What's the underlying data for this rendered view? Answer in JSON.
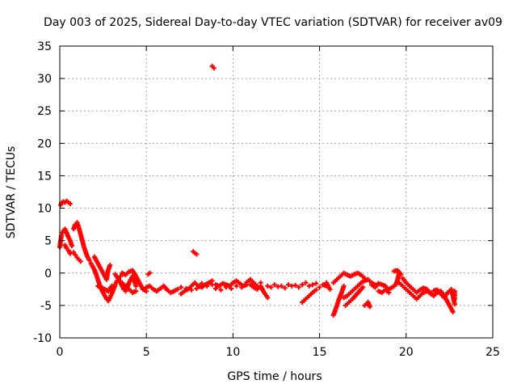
{
  "chart_data": {
    "type": "scatter",
    "title": "Day 003 of 2025, Sidereal Day-to-day VTEC variation (SDTVAR) for receiver av09",
    "xlabel": "GPS time / hours",
    "ylabel": "SDTVAR / TECUs",
    "xlim": [
      0,
      25
    ],
    "ylim": [
      -10,
      35
    ],
    "xticks": [
      0,
      5,
      10,
      15,
      20,
      25
    ],
    "yticks": [
      -10,
      -5,
      0,
      5,
      10,
      15,
      20,
      25,
      30,
      35
    ],
    "grid": true,
    "marker_color": "#ff0000",
    "series": [
      {
        "name": "SDTVAR",
        "points": [
          [
            0.0,
            4.0
          ],
          [
            0.05,
            5.0
          ],
          [
            0.1,
            5.8
          ],
          [
            0.15,
            6.2
          ],
          [
            0.2,
            6.5
          ],
          [
            0.3,
            6.8
          ],
          [
            0.4,
            6.2
          ],
          [
            0.5,
            5.5
          ],
          [
            0.6,
            5.0
          ],
          [
            0.7,
            4.2
          ],
          [
            0.8,
            6.8
          ],
          [
            0.9,
            7.5
          ],
          [
            1.0,
            7.8
          ],
          [
            1.1,
            7.0
          ],
          [
            1.2,
            6.0
          ],
          [
            1.3,
            5.0
          ],
          [
            1.4,
            4.0
          ],
          [
            1.5,
            3.2
          ],
          [
            1.6,
            2.5
          ],
          [
            1.7,
            2.0
          ],
          [
            0.8,
            3.2
          ],
          [
            0.9,
            2.8
          ],
          [
            1.0,
            2.4
          ],
          [
            1.1,
            2.1
          ],
          [
            1.2,
            1.8
          ],
          [
            0.05,
            10.5
          ],
          [
            0.1,
            10.8
          ],
          [
            0.2,
            11.0
          ],
          [
            0.3,
            10.9
          ],
          [
            0.4,
            11.1
          ],
          [
            0.5,
            10.9
          ],
          [
            0.6,
            10.7
          ],
          [
            0.3,
            4.3
          ],
          [
            0.4,
            3.8
          ],
          [
            0.5,
            3.5
          ],
          [
            0.6,
            3.0
          ],
          [
            1.8,
            1.5
          ],
          [
            1.9,
            1.0
          ],
          [
            2.0,
            0.5
          ],
          [
            2.1,
            -0.2
          ],
          [
            2.2,
            -1.0
          ],
          [
            2.3,
            -1.8
          ],
          [
            2.4,
            -2.5
          ],
          [
            2.5,
            -3.0
          ],
          [
            2.6,
            -3.5
          ],
          [
            2.7,
            -4.0
          ],
          [
            2.8,
            -4.3
          ],
          [
            2.9,
            -3.8
          ],
          [
            3.0,
            -3.2
          ],
          [
            3.1,
            -2.5
          ],
          [
            3.2,
            -1.8
          ],
          [
            3.3,
            -1.2
          ],
          [
            3.4,
            -0.8
          ],
          [
            3.5,
            -0.5
          ],
          [
            2.0,
            2.5
          ],
          [
            2.1,
            2.0
          ],
          [
            2.2,
            1.5
          ],
          [
            2.3,
            1.0
          ],
          [
            2.4,
            0.5
          ],
          [
            2.5,
            0.0
          ],
          [
            2.6,
            -0.5
          ],
          [
            2.7,
            -1.0
          ],
          [
            2.8,
            0.5
          ],
          [
            2.9,
            1.2
          ],
          [
            2.2,
            -2.0
          ],
          [
            2.4,
            -2.2
          ],
          [
            2.6,
            -2.5
          ],
          [
            2.8,
            -2.8
          ],
          [
            3.0,
            -2.0
          ],
          [
            3.5,
            -1.5
          ],
          [
            3.6,
            -2.0
          ],
          [
            3.7,
            -2.5
          ],
          [
            3.8,
            -2.8
          ],
          [
            3.9,
            -2.2
          ],
          [
            4.0,
            -1.5
          ],
          [
            4.1,
            -1.0
          ],
          [
            4.2,
            -0.5
          ],
          [
            4.3,
            -1.2
          ],
          [
            4.4,
            -2.0
          ],
          [
            3.6,
            0.0
          ],
          [
            3.8,
            -0.3
          ],
          [
            4.0,
            0.2
          ],
          [
            4.2,
            0.4
          ],
          [
            4.4,
            -0.5
          ],
          [
            4.6,
            -1.5
          ],
          [
            4.8,
            -2.5
          ],
          [
            5.0,
            -2.8
          ],
          [
            3.2,
            -0.2
          ],
          [
            3.4,
            -1.0
          ],
          [
            3.6,
            -1.5
          ],
          [
            3.8,
            -2.0
          ],
          [
            4.0,
            -2.5
          ],
          [
            4.2,
            -3.0
          ],
          [
            4.4,
            -2.8
          ],
          [
            5.0,
            -2.2
          ],
          [
            5.2,
            -2.0
          ],
          [
            5.4,
            -2.5
          ],
          [
            5.6,
            -2.8
          ],
          [
            5.8,
            -2.4
          ],
          [
            6.0,
            -2.0
          ],
          [
            6.2,
            -2.6
          ],
          [
            6.4,
            -3.0
          ],
          [
            6.6,
            -2.8
          ],
          [
            6.8,
            -2.5
          ],
          [
            5.1,
            -0.2
          ],
          [
            5.2,
            0.0
          ],
          [
            7.0,
            -3.2
          ],
          [
            7.2,
            -2.8
          ],
          [
            7.4,
            -2.5
          ],
          [
            7.6,
            -2.0
          ],
          [
            7.8,
            -1.5
          ],
          [
            8.0,
            -2.0
          ],
          [
            8.2,
            -2.2
          ],
          [
            8.4,
            -1.8
          ],
          [
            8.6,
            -1.5
          ],
          [
            8.8,
            -1.2
          ],
          [
            7.0,
            -2.2
          ],
          [
            7.3,
            -2.4
          ],
          [
            7.6,
            -2.6
          ],
          [
            7.9,
            -2.4
          ],
          [
            8.2,
            -1.6
          ],
          [
            8.5,
            -2.0
          ],
          [
            8.8,
            -1.8
          ],
          [
            7.7,
            3.3
          ],
          [
            7.8,
            3.1
          ],
          [
            7.9,
            2.9
          ],
          [
            8.8,
            31.9
          ],
          [
            8.9,
            31.6
          ],
          [
            9.0,
            -1.8
          ],
          [
            9.2,
            -2.0
          ],
          [
            9.4,
            -1.6
          ],
          [
            9.6,
            -1.8
          ],
          [
            9.8,
            -2.0
          ],
          [
            10.0,
            -1.5
          ],
          [
            10.2,
            -1.2
          ],
          [
            10.4,
            -1.6
          ],
          [
            10.6,
            -2.0
          ],
          [
            10.8,
            -1.8
          ],
          [
            9.0,
            -2.4
          ],
          [
            9.3,
            -2.6
          ],
          [
            9.6,
            -2.2
          ],
          [
            9.9,
            -2.4
          ],
          [
            10.2,
            -2.0
          ],
          [
            10.5,
            -2.2
          ],
          [
            10.8,
            -1.4
          ],
          [
            11.0,
            -1.0
          ],
          [
            11.2,
            -1.5
          ],
          [
            11.4,
            -2.0
          ],
          [
            11.0,
            -1.8
          ],
          [
            11.2,
            -2.2
          ],
          [
            11.4,
            -2.5
          ],
          [
            11.6,
            -2.0
          ],
          [
            11.8,
            -3.0
          ],
          [
            12.0,
            -3.8
          ],
          [
            11.6,
            -1.5
          ],
          [
            12.0,
            -2.0
          ],
          [
            12.4,
            -1.8
          ],
          [
            12.8,
            -2.0
          ],
          [
            13.2,
            -1.8
          ],
          [
            13.6,
            -1.9
          ],
          [
            14.0,
            -1.8
          ],
          [
            14.4,
            -2.0
          ],
          [
            14.8,
            -1.6
          ],
          [
            15.2,
            -1.8
          ],
          [
            15.4,
            -2.0
          ],
          [
            12.2,
            -2.2
          ],
          [
            12.6,
            -2.1
          ],
          [
            13.0,
            -2.3
          ],
          [
            13.4,
            -2.0
          ],
          [
            13.8,
            -2.2
          ],
          [
            14.2,
            -1.5
          ],
          [
            14.6,
            -1.8
          ],
          [
            15.0,
            -2.2
          ],
          [
            14.0,
            -4.5
          ],
          [
            14.2,
            -4.0
          ],
          [
            14.4,
            -3.5
          ],
          [
            14.6,
            -3.0
          ],
          [
            14.8,
            -2.6
          ],
          [
            15.4,
            -1.5
          ],
          [
            15.5,
            -2.0
          ],
          [
            15.6,
            -2.5
          ],
          [
            15.8,
            -6.5
          ],
          [
            15.9,
            -5.8
          ],
          [
            16.0,
            -5.0
          ],
          [
            16.1,
            -4.2
          ],
          [
            16.2,
            -3.5
          ],
          [
            16.3,
            -2.8
          ],
          [
            16.4,
            -2.0
          ],
          [
            15.8,
            -1.5
          ],
          [
            16.0,
            -1.0
          ],
          [
            16.2,
            -0.5
          ],
          [
            16.4,
            0.0
          ],
          [
            16.6,
            -0.3
          ],
          [
            16.8,
            -0.5
          ],
          [
            17.0,
            -0.2
          ],
          [
            17.2,
            0.0
          ],
          [
            17.4,
            -0.3
          ],
          [
            17.6,
            -0.8
          ],
          [
            16.4,
            -3.8
          ],
          [
            16.6,
            -3.5
          ],
          [
            16.8,
            -3.0
          ],
          [
            17.0,
            -2.5
          ],
          [
            17.2,
            -2.0
          ],
          [
            17.4,
            -1.5
          ],
          [
            17.6,
            -1.2
          ],
          [
            17.8,
            -1.0
          ],
          [
            18.0,
            -1.5
          ],
          [
            18.2,
            -1.8
          ],
          [
            16.5,
            -5.0
          ],
          [
            16.7,
            -4.5
          ],
          [
            16.9,
            -4.0
          ],
          [
            17.1,
            -3.4
          ],
          [
            17.3,
            -2.8
          ],
          [
            17.5,
            -2.2
          ],
          [
            17.6,
            -5.0
          ],
          [
            17.8,
            -4.5
          ],
          [
            17.9,
            -5.2
          ],
          [
            18.0,
            -1.8
          ],
          [
            18.2,
            -2.2
          ],
          [
            18.4,
            -1.6
          ],
          [
            18.6,
            -1.8
          ],
          [
            18.8,
            -2.0
          ],
          [
            19.0,
            -2.5
          ],
          [
            19.2,
            -2.2
          ],
          [
            19.4,
            -1.8
          ],
          [
            19.5,
            -1.0
          ],
          [
            19.6,
            0.0
          ],
          [
            18.4,
            -2.8
          ],
          [
            18.6,
            -3.0
          ],
          [
            18.8,
            -2.6
          ],
          [
            19.0,
            -3.0
          ],
          [
            19.3,
            0.3
          ],
          [
            19.5,
            0.4
          ],
          [
            19.7,
            -0.2
          ],
          [
            19.6,
            -1.5
          ],
          [
            19.8,
            -2.0
          ],
          [
            20.0,
            -2.5
          ],
          [
            20.2,
            -3.0
          ],
          [
            20.4,
            -3.5
          ],
          [
            20.6,
            -4.0
          ],
          [
            20.8,
            -3.5
          ],
          [
            21.0,
            -3.0
          ],
          [
            21.2,
            -2.8
          ],
          [
            21.4,
            -3.0
          ],
          [
            19.8,
            -0.8
          ],
          [
            20.0,
            -1.5
          ],
          [
            20.2,
            -2.0
          ],
          [
            20.4,
            -2.5
          ],
          [
            20.6,
            -3.0
          ],
          [
            20.8,
            -2.6
          ],
          [
            21.0,
            -2.3
          ],
          [
            21.2,
            -2.5
          ],
          [
            21.4,
            -3.2
          ],
          [
            21.6,
            -3.5
          ],
          [
            21.8,
            -3.0
          ],
          [
            22.0,
            -2.8
          ],
          [
            22.2,
            -3.5
          ],
          [
            22.4,
            -4.5
          ],
          [
            22.6,
            -5.5
          ],
          [
            22.7,
            -6.0
          ],
          [
            22.8,
            -4.0
          ],
          [
            22.8,
            -2.8
          ],
          [
            21.6,
            -2.7
          ],
          [
            21.8,
            -2.6
          ],
          [
            22.0,
            -3.2
          ],
          [
            22.2,
            -3.8
          ],
          [
            22.4,
            -3.0
          ],
          [
            22.6,
            -2.5
          ],
          [
            22.7,
            -3.5
          ],
          [
            22.8,
            -4.8
          ]
        ]
      }
    ]
  }
}
